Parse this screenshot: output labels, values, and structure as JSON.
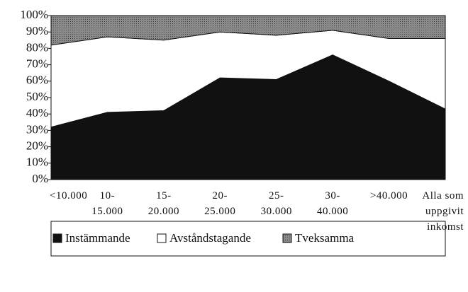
{
  "chart_data": {
    "type": "stacked_area",
    "categories": [
      "<10.000",
      "10-\n15.000",
      "15-\n20.000",
      "20-\n25.000",
      "25-\n30.000",
      "30-\n40.000",
      ">40.000",
      "Alla som\nuppgivit\ninkomst"
    ],
    "series": [
      {
        "name": "Instämmande",
        "color": "#111111",
        "values": [
          32,
          41,
          42,
          62,
          61,
          76,
          60,
          43
        ]
      },
      {
        "name": "Avståndstagande",
        "color": "#ffffff",
        "values": [
          50,
          46,
          43,
          28,
          27,
          15,
          26,
          43
        ]
      },
      {
        "name": "Tveksamma",
        "color": "#8a8a8a",
        "values": [
          18,
          13,
          15,
          10,
          12,
          9,
          14,
          14
        ]
      }
    ],
    "ylim": [
      0,
      100
    ],
    "yticks": [
      {
        "value": 0,
        "label": "0%"
      },
      {
        "value": 10,
        "label": "10%"
      },
      {
        "value": 20,
        "label": "20%"
      },
      {
        "value": 30,
        "label": "30%"
      },
      {
        "value": 40,
        "label": "40%"
      },
      {
        "value": 50,
        "label": "50%"
      },
      {
        "value": 60,
        "label": "60%"
      },
      {
        "value": 70,
        "label": "70%"
      },
      {
        "value": 80,
        "label": "80%"
      },
      {
        "value": 90,
        "label": "90%"
      },
      {
        "value": 100,
        "label": "100%"
      }
    ],
    "legend": "bottom"
  }
}
